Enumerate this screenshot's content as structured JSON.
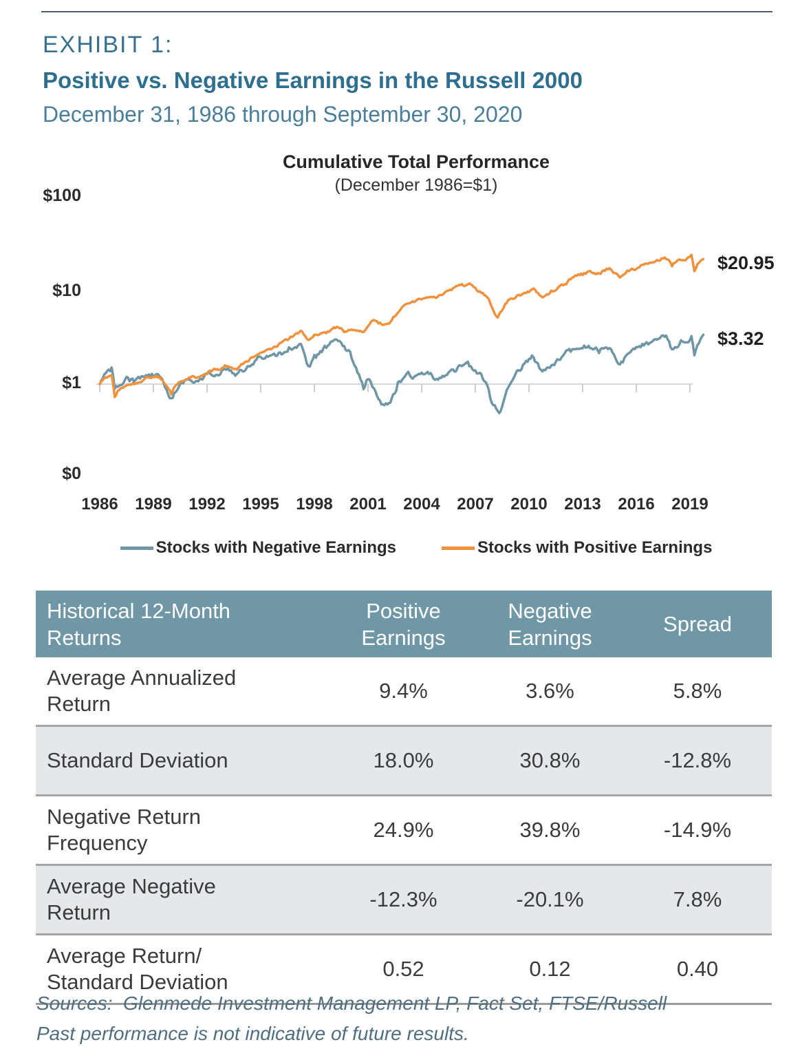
{
  "page": {
    "exhibit_label": "EXHIBIT 1:",
    "title": "Positive vs. Negative Earnings in the Russell 2000",
    "subtitle": "December 31, 1986 through September 30, 2020",
    "sources_line1": "Sources:  Glenmede Investment Management LP, Fact Set, FTSE/Russell",
    "sources_line2": "Past performance is not indicative of future results."
  },
  "colors": {
    "accent_teal": "#2e6e8e",
    "table_header_bg": "#6f97a6",
    "table_row_shaded": "#e5e8ea",
    "positive_orange": "#f0913e",
    "negative_bluegray": "#6e96a7",
    "gridline_gray": "#d9d9d9"
  },
  "chart_data": {
    "type": "line",
    "title": "Cumulative Total Performance",
    "subtitle": "(December 1986=$1)",
    "y_scale": "log",
    "y_ticks": [
      "$100",
      "$10",
      "$1",
      "$0"
    ],
    "x_ticks": [
      "1986",
      "1989",
      "1992",
      "1995",
      "1998",
      "2001",
      "2004",
      "2007",
      "2010",
      "2013",
      "2016",
      "2019"
    ],
    "x_range": [
      1987.0,
      2020.75
    ],
    "grid": "single-line-at-1",
    "legend_position": "bottom",
    "series": [
      {
        "name": "Stocks with Negative Earnings",
        "color": "#6e96a7",
        "end_value": 3.32,
        "end_label": "$3.32",
        "keypoints": [
          [
            1987.0,
            1.0
          ],
          [
            1987.17,
            1.18
          ],
          [
            1987.5,
            1.35
          ],
          [
            1987.7,
            1.5
          ],
          [
            1987.83,
            0.88
          ],
          [
            1988.0,
            0.95
          ],
          [
            1988.5,
            1.08
          ],
          [
            1989.0,
            1.12
          ],
          [
            1989.6,
            1.22
          ],
          [
            1990.3,
            1.25
          ],
          [
            1990.6,
            1.05
          ],
          [
            1991.0,
            0.7
          ],
          [
            1991.4,
            0.95
          ],
          [
            1992.0,
            1.12
          ],
          [
            1992.5,
            1.1
          ],
          [
            1993.0,
            1.28
          ],
          [
            1994.2,
            1.42
          ],
          [
            1994.6,
            1.28
          ],
          [
            1995.0,
            1.4
          ],
          [
            1996.0,
            1.9
          ],
          [
            1996.6,
            2.0
          ],
          [
            1997.0,
            2.1
          ],
          [
            1997.6,
            2.4
          ],
          [
            1998.3,
            2.6
          ],
          [
            1998.7,
            1.45
          ],
          [
            1999.0,
            1.85
          ],
          [
            1999.5,
            2.3
          ],
          [
            2000.2,
            3.3
          ],
          [
            2000.6,
            2.5
          ],
          [
            2001.0,
            2.1
          ],
          [
            2001.4,
            1.45
          ],
          [
            2001.75,
            0.92
          ],
          [
            2002.0,
            1.11
          ],
          [
            2002.4,
            0.85
          ],
          [
            2002.8,
            0.58
          ],
          [
            2003.2,
            0.62
          ],
          [
            2003.7,
            1.05
          ],
          [
            2004.2,
            1.28
          ],
          [
            2004.6,
            1.15
          ],
          [
            2005.3,
            1.35
          ],
          [
            2005.8,
            1.12
          ],
          [
            2006.3,
            1.3
          ],
          [
            2007.0,
            1.5
          ],
          [
            2007.6,
            1.62
          ],
          [
            2008.0,
            1.4
          ],
          [
            2008.6,
            1.1
          ],
          [
            2008.8,
            0.75
          ],
          [
            2009.0,
            0.6
          ],
          [
            2009.35,
            0.5
          ],
          [
            2009.8,
            0.95
          ],
          [
            2010.2,
            1.3
          ],
          [
            2010.6,
            1.45
          ],
          [
            2011.2,
            2.05
          ],
          [
            2011.8,
            1.35
          ],
          [
            2012.3,
            1.6
          ],
          [
            2013.0,
            2.1
          ],
          [
            2013.8,
            2.45
          ],
          [
            2014.3,
            2.55
          ],
          [
            2014.9,
            2.25
          ],
          [
            2015.5,
            2.45
          ],
          [
            2016.1,
            1.6
          ],
          [
            2016.8,
            2.2
          ],
          [
            2017.5,
            2.6
          ],
          [
            2018.0,
            2.8
          ],
          [
            2018.65,
            3.15
          ],
          [
            2019.0,
            2.35
          ],
          [
            2019.4,
            2.75
          ],
          [
            2019.8,
            2.9
          ],
          [
            2020.1,
            3.1
          ],
          [
            2020.25,
            2.1
          ],
          [
            2020.5,
            2.8
          ],
          [
            2020.75,
            3.32
          ]
        ]
      },
      {
        "name": "Stocks with Positive Earnings",
        "color": "#f0913e",
        "end_value": 20.95,
        "end_label": "$20.95",
        "keypoints": [
          [
            1987.0,
            1.0
          ],
          [
            1987.17,
            1.12
          ],
          [
            1987.5,
            1.22
          ],
          [
            1987.7,
            1.28
          ],
          [
            1987.83,
            0.73
          ],
          [
            1988.0,
            0.85
          ],
          [
            1988.5,
            1.0
          ],
          [
            1989.0,
            1.05
          ],
          [
            1989.6,
            1.15
          ],
          [
            1990.3,
            1.18
          ],
          [
            1990.6,
            1.05
          ],
          [
            1991.0,
            0.78
          ],
          [
            1991.3,
            1.0
          ],
          [
            1992.0,
            1.18
          ],
          [
            1992.5,
            1.22
          ],
          [
            1993.0,
            1.35
          ],
          [
            1994.0,
            1.52
          ],
          [
            1994.6,
            1.42
          ],
          [
            1995.0,
            1.6
          ],
          [
            1996.0,
            2.2
          ],
          [
            1996.6,
            2.45
          ],
          [
            1997.0,
            2.65
          ],
          [
            1997.6,
            3.1
          ],
          [
            1998.3,
            3.65
          ],
          [
            1998.7,
            2.85
          ],
          [
            1999.0,
            3.2
          ],
          [
            1999.5,
            3.4
          ],
          [
            2000.25,
            3.95
          ],
          [
            2000.7,
            3.6
          ],
          [
            2001.2,
            3.8
          ],
          [
            2001.75,
            3.5
          ],
          [
            2002.3,
            5.0
          ],
          [
            2002.8,
            4.2
          ],
          [
            2003.2,
            4.4
          ],
          [
            2004.0,
            7.0
          ],
          [
            2004.6,
            7.4
          ],
          [
            2005.0,
            7.9
          ],
          [
            2005.6,
            8.3
          ],
          [
            2006.4,
            9.3
          ],
          [
            2007.0,
            10.7
          ],
          [
            2007.55,
            11.5
          ],
          [
            2008.0,
            10.2
          ],
          [
            2008.7,
            8.5
          ],
          [
            2009.2,
            4.9
          ],
          [
            2009.7,
            7.0
          ],
          [
            2010.0,
            8.0
          ],
          [
            2010.5,
            8.6
          ],
          [
            2011.3,
            10.2
          ],
          [
            2011.8,
            8.3
          ],
          [
            2012.3,
            9.5
          ],
          [
            2013.0,
            11.5
          ],
          [
            2013.6,
            13.5
          ],
          [
            2014.4,
            15.3
          ],
          [
            2014.8,
            14.5
          ],
          [
            2015.5,
            16.5
          ],
          [
            2016.1,
            13.8
          ],
          [
            2016.8,
            16.8
          ],
          [
            2017.5,
            18.0
          ],
          [
            2018.0,
            19.5
          ],
          [
            2018.65,
            21.8
          ],
          [
            2019.0,
            17.5
          ],
          [
            2019.3,
            20.0
          ],
          [
            2019.8,
            21.5
          ],
          [
            2020.1,
            23.5
          ],
          [
            2020.25,
            15.8
          ],
          [
            2020.45,
            19.0
          ],
          [
            2020.75,
            20.95
          ]
        ]
      }
    ]
  },
  "table": {
    "header": [
      "Historical 12-Month\nReturns",
      "Positive\nEarnings",
      "Negative\nEarnings",
      "Spread"
    ],
    "rows": [
      {
        "label": "Average Annualized\nReturn",
        "values": [
          "9.4%",
          "3.6%",
          "5.8%"
        ],
        "shaded": false
      },
      {
        "label": "Standard Deviation",
        "values": [
          "18.0%",
          "30.8%",
          "-12.8%"
        ],
        "shaded": true
      },
      {
        "label": "Negative Return\nFrequency",
        "values": [
          "24.9%",
          "39.8%",
          "-14.9%"
        ],
        "shaded": false
      },
      {
        "label": "Average Negative\nReturn",
        "values": [
          "-12.3%",
          "-20.1%",
          "7.8%"
        ],
        "shaded": true
      },
      {
        "label": "Average Return/\nStandard Deviation",
        "values": [
          "0.52",
          "0.12",
          "0.40"
        ],
        "shaded": false
      }
    ]
  }
}
